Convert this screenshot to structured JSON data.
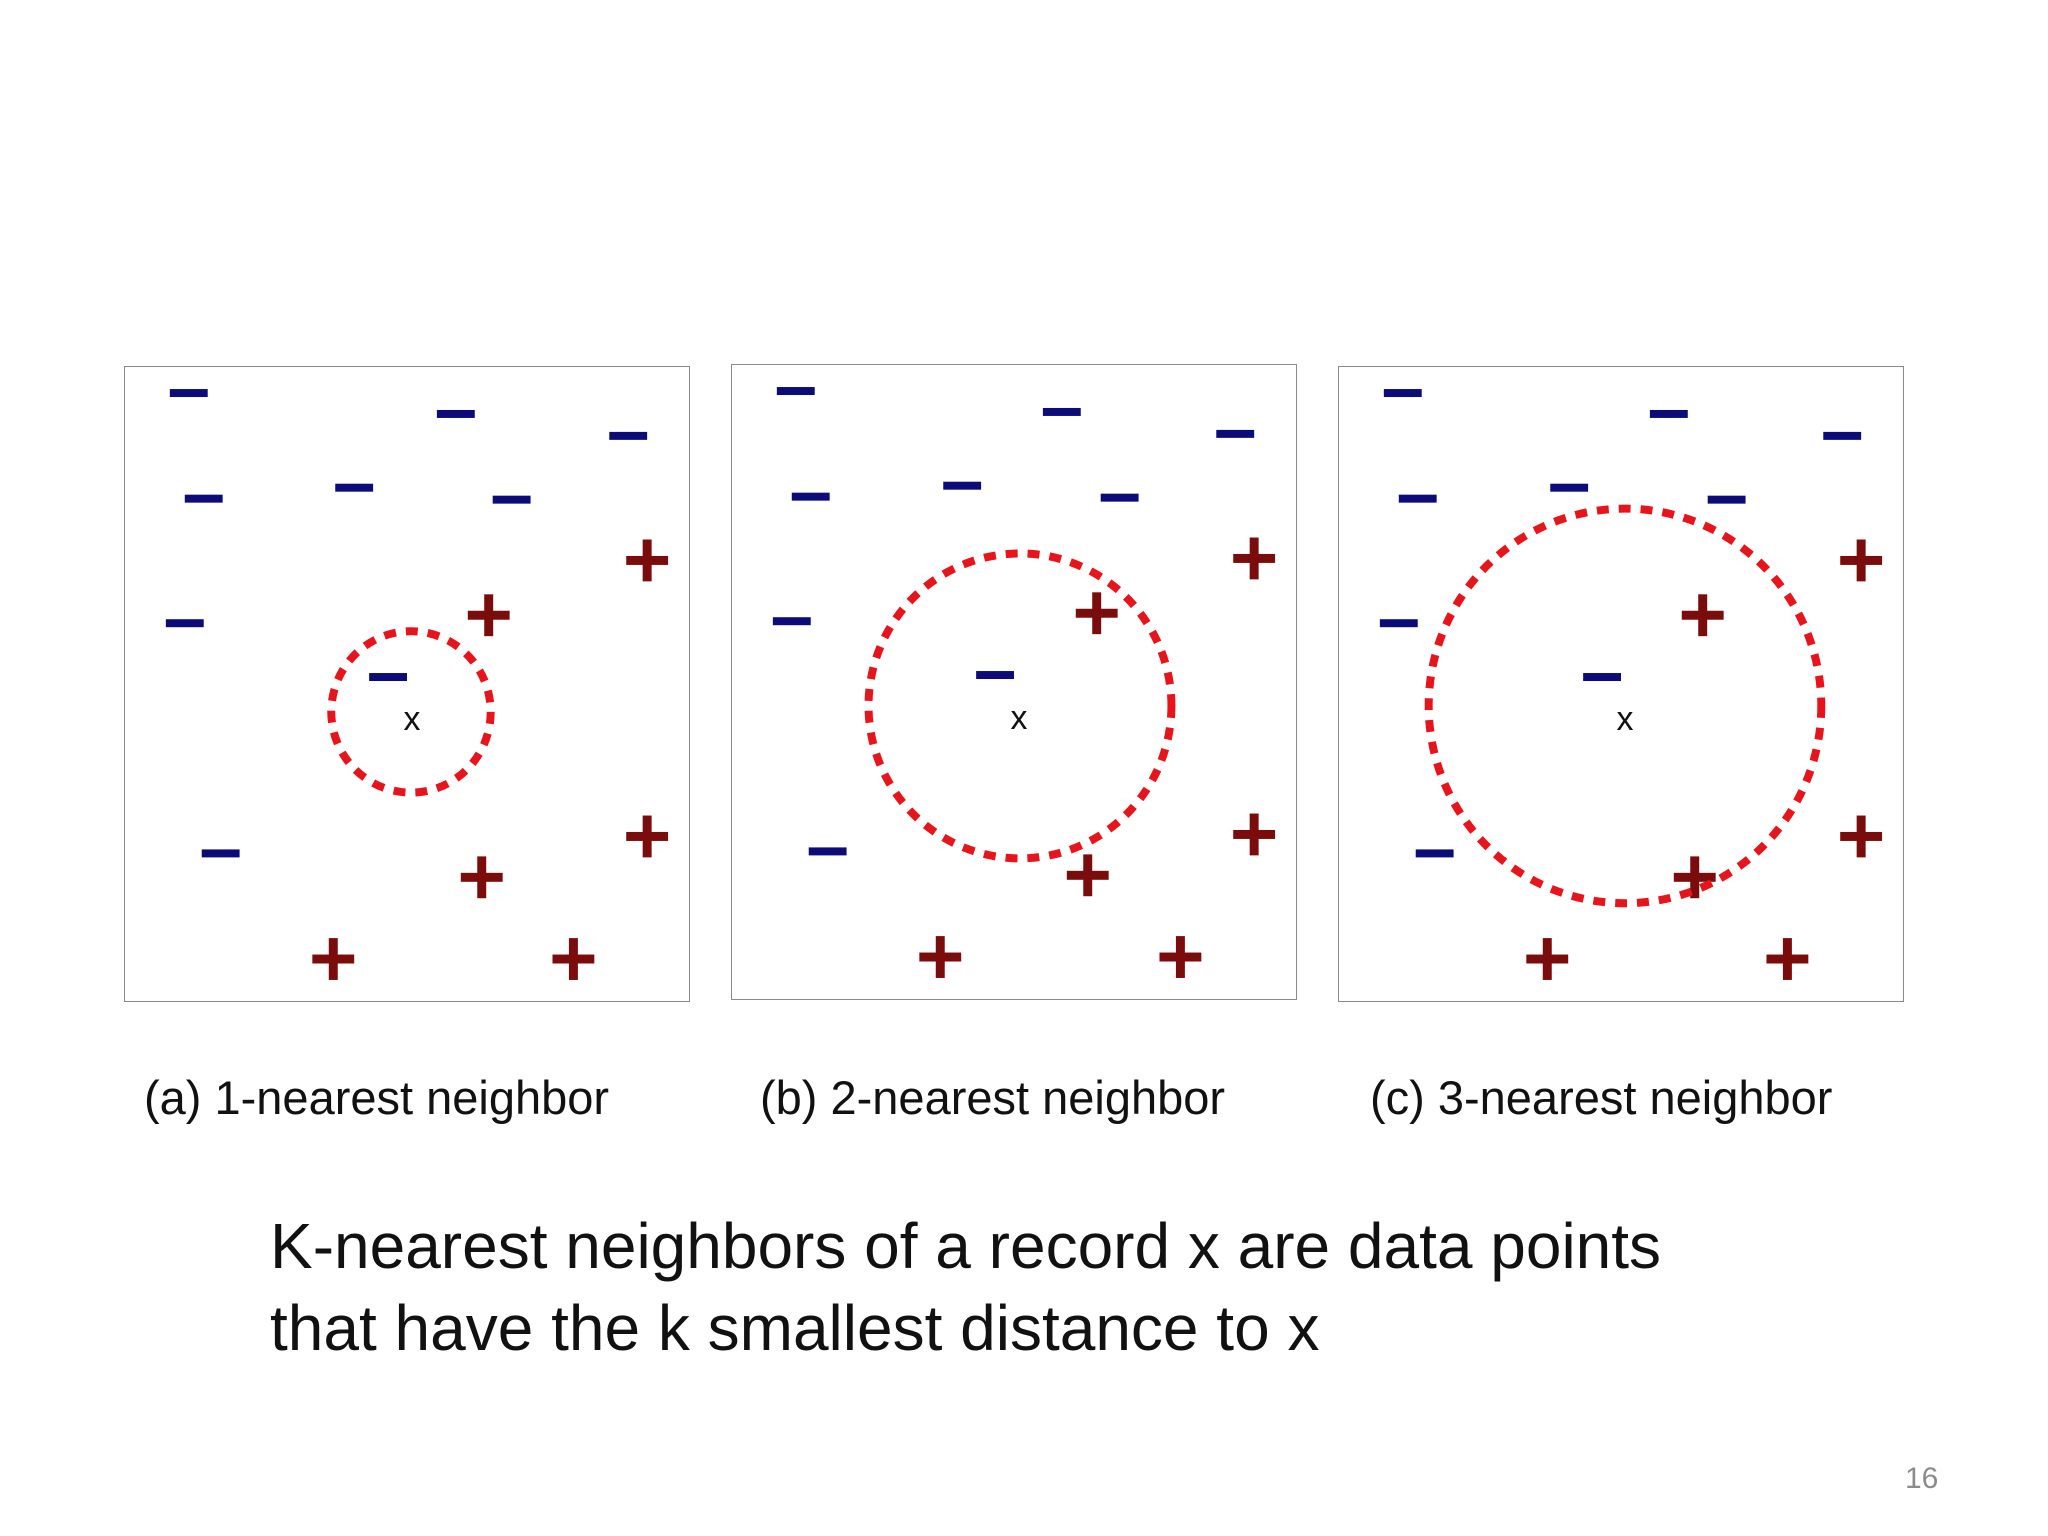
{
  "colors": {
    "negative": "#0b0b7a",
    "positive": "#7a0c0c",
    "neighborhood": "#e8141c",
    "panel_border": "#8a8a8a",
    "text": "#111111"
  },
  "icons": {
    "negative_point": "minus-icon",
    "positive_point": "plus-icon",
    "query_point": "x-label"
  },
  "query_label": "x",
  "panels": [
    {
      "id": "a",
      "caption": "(a) 1-nearest neighbor",
      "k": 1
    },
    {
      "id": "b",
      "caption": "(b) 2-nearest neighbor",
      "k": 2
    },
    {
      "id": "c",
      "caption": "(c) 3-nearest neighbor",
      "k": 3
    }
  ],
  "body": {
    "line1": "K-nearest neighbors of a record x are data points",
    "line2": "that have the k smallest distance to x"
  },
  "page_number": "16"
}
